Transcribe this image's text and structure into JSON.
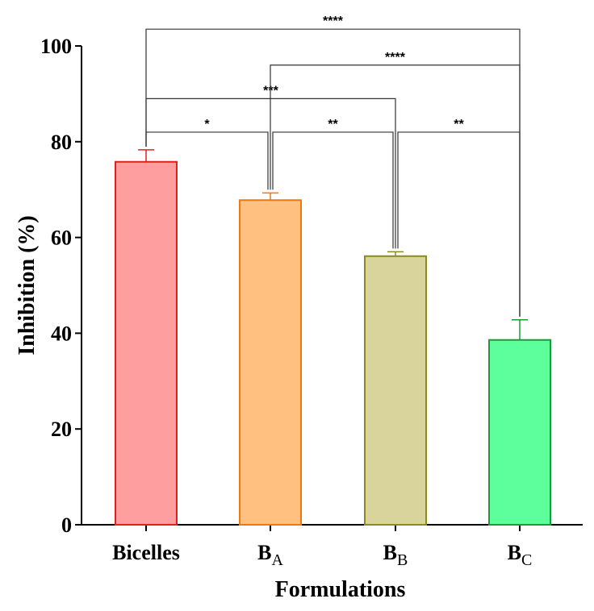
{
  "chart_data": {
    "type": "bar",
    "xlabel": "Formulations",
    "ylabel": "Inhibition (%)",
    "ylim": [
      0,
      100
    ],
    "yticks": [
      0,
      20,
      40,
      60,
      80,
      100
    ],
    "categories": [
      {
        "base": "B",
        "sub": "icelles",
        "label": "Bicelles",
        "subscript": false
      },
      {
        "base": "B",
        "sub": "A",
        "label": "BA",
        "subscript": true
      },
      {
        "base": "B",
        "sub": "B",
        "label": "BB",
        "subscript": true
      },
      {
        "base": "B",
        "sub": "C",
        "label": "BC",
        "subscript": true
      }
    ],
    "values": [
      75.8,
      67.8,
      56.1,
      38.6
    ],
    "errors": [
      2.5,
      1.5,
      0.9,
      4.2
    ],
    "fill_colors": [
      "#ff9e9e",
      "#ffc080",
      "#d8d49c",
      "#5cff9c"
    ],
    "edge_colors": [
      "#e0201c",
      "#f07810",
      "#8a8a20",
      "#1a9a3a"
    ],
    "comparisons": [
      {
        "from": 0,
        "to": 1,
        "label": "*",
        "level": 82
      },
      {
        "from": 1,
        "to": 2,
        "label": "**",
        "level": 82
      },
      {
        "from": 2,
        "to": 3,
        "label": "**",
        "level": 82
      },
      {
        "from": 0,
        "to": 2,
        "label": "***",
        "level": 89
      },
      {
        "from": 1,
        "to": 3,
        "label": "****",
        "level": 96
      },
      {
        "from": 0,
        "to": 3,
        "label": "****",
        "level": 103.5
      }
    ]
  }
}
